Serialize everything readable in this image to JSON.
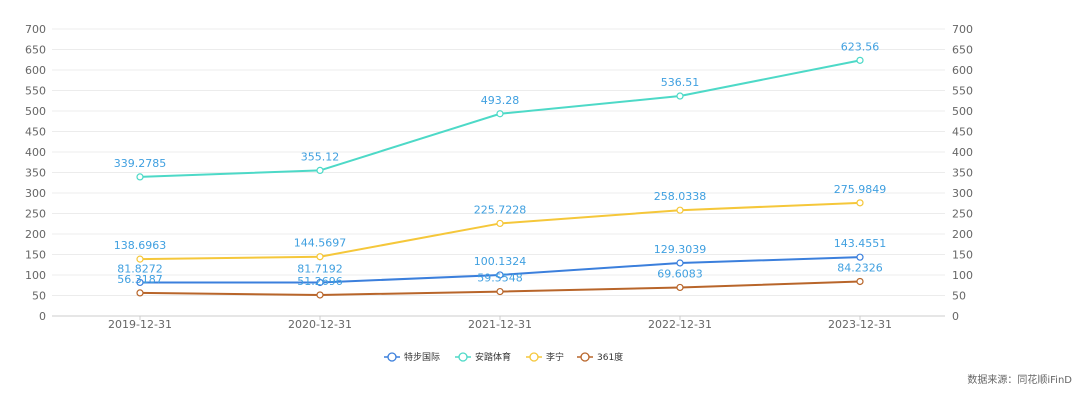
{
  "chart_data": {
    "type": "line",
    "categories": [
      "2019-12-31",
      "2020-12-31",
      "2021-12-31",
      "2022-12-31",
      "2023-12-31"
    ],
    "ylim": [
      0,
      700
    ],
    "ytick_step": 50,
    "grid": true,
    "legend_position": "bottom-center",
    "label_color": "#40a0e0",
    "series": [
      {
        "name": "特步国际",
        "color": "#3b7fdc",
        "values": [
          81.8272,
          81.7192,
          100.1324,
          129.3039,
          143.4551
        ]
      },
      {
        "name": "安踏体育",
        "color": "#4dd9c7",
        "values": [
          339.2785,
          355.12,
          493.28,
          536.51,
          623.56
        ]
      },
      {
        "name": "李宁",
        "color": "#f5c73a",
        "values": [
          138.6963,
          144.5697,
          225.7228,
          258.0338,
          275.9849
        ]
      },
      {
        "name": "361度",
        "color": "#b8652a",
        "values": [
          56.3187,
          51.2696,
          59.5548,
          69.6083,
          84.2326
        ]
      }
    ]
  },
  "source_text": "数据来源：同花顺iFinD"
}
